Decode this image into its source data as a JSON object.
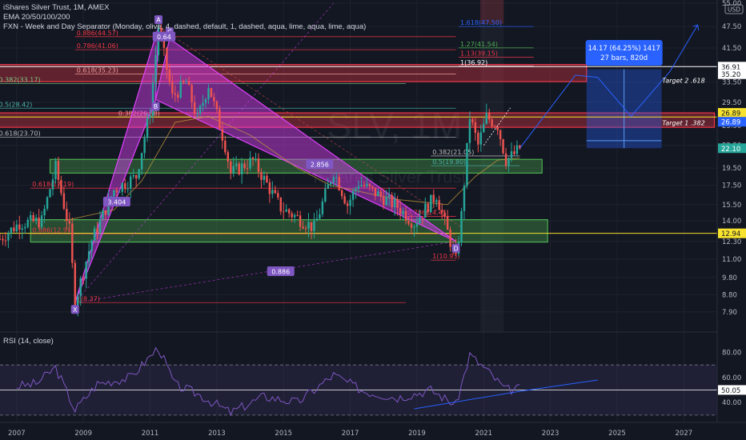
{
  "legend": {
    "title": "iShares Silver Trust, 1M, AMEX",
    "ema": "EMA 20/50/100/200",
    "fxn": "FXN - Week and Day Separator (Monday, olive, 4, dashed, default, 1, dashed, aqua, lime, aqua, lime, aqua)",
    "rsi": "RSI (14, close)"
  },
  "currency": "USD",
  "watermark": {
    "symbol": "SLV, 1M",
    "name": "iShares Silver Trust"
  },
  "colors": {
    "background": "#131722",
    "up": "#26a69a",
    "down": "#ef5350",
    "pattern": "#e040fb",
    "red_zone": "#f23645",
    "green_zone": "#4caf50",
    "target_box": "#2962ff",
    "yellow_line": "#f7e32f",
    "rsi_line": "#7e57c2"
  },
  "chart_data": {
    "type": "candlestick",
    "x_range": [
      "2006-06",
      "2027-12"
    ],
    "x_ticks": [
      "2007",
      "2009",
      "2011",
      "2013",
      "2015",
      "2017",
      "2019",
      "2021",
      "2023",
      "2025",
      "2027"
    ],
    "y_ticks": [
      "7.90",
      "8.80",
      "9.80",
      "11.00",
      "12.30",
      "14.00",
      "15.50",
      "17.50",
      "19.50",
      "22.50",
      "25.50",
      "29.50",
      "33.50",
      "41.50",
      "47.50",
      "55.00"
    ],
    "y_range": [
      7.1,
      55
    ],
    "y_scale": "log",
    "price_path": [
      [
        "2006-07",
        12.5
      ],
      [
        "2007-02",
        13.8
      ],
      [
        "2007-10",
        14.0
      ],
      [
        "2008-03",
        19.6
      ],
      [
        "2008-08",
        13.2
      ],
      [
        "2008-10",
        8.37
      ],
      [
        "2009-04",
        12.4
      ],
      [
        "2009-12",
        17.0
      ],
      [
        "2010-08",
        18.5
      ],
      [
        "2011-01",
        28.0
      ],
      [
        "2011-04",
        47.5
      ],
      [
        "2011-09",
        30.5
      ],
      [
        "2012-02",
        33.5
      ],
      [
        "2012-06",
        26.5
      ],
      [
        "2012-10",
        33.0
      ],
      [
        "2013-04",
        22.5
      ],
      [
        "2013-06",
        18.9
      ],
      [
        "2014-02",
        20.5
      ],
      [
        "2014-12",
        15.2
      ],
      [
        "2015-12",
        13.4
      ],
      [
        "2016-07",
        19.2
      ],
      [
        "2016-12",
        15.5
      ],
      [
        "2017-04",
        17.8
      ],
      [
        "2018-06",
        15.3
      ],
      [
        "2018-12",
        13.8
      ],
      [
        "2019-08",
        16.5
      ],
      [
        "2020-03",
        10.93
      ],
      [
        "2020-05",
        14.5
      ],
      [
        "2020-08",
        27.0
      ],
      [
        "2020-11",
        22.5
      ],
      [
        "2021-02",
        26.9
      ],
      [
        "2021-06",
        25.5
      ],
      [
        "2021-09",
        20.5
      ],
      [
        "2021-12",
        21.3
      ],
      [
        "2022-02",
        22.1
      ]
    ],
    "last_price": 22.1,
    "price_labels": [
      {
        "label": "36.91",
        "value": 36.91,
        "color": "#f23645",
        "text_color": "#131722",
        "bg": "#ffffff"
      },
      {
        "label": "35.20",
        "value": 35.2,
        "color": "#f23645",
        "text_color": "#131722",
        "bg": "#ffffff"
      },
      {
        "label": "26.89",
        "value": 27.6,
        "color": "#f7e32f",
        "text_color": "#131722",
        "bg": "#f7e32f"
      },
      {
        "label": "26.89",
        "value": 26.1,
        "color": "#2962ff",
        "text_color": "#ffffff",
        "bg": "#2962ff"
      },
      {
        "label": "22.10",
        "value": 22.1,
        "color": "#26a69a",
        "text_color": "#ffffff",
        "bg": "#26a69a"
      },
      {
        "label": "12.94",
        "value": 12.94,
        "color": "#f7e32f",
        "text_color": "#131722",
        "bg": "#f7e32f"
      }
    ],
    "horizontal_lines": [
      {
        "value": 26.89,
        "color": "#f7e32f"
      },
      {
        "value": 12.94,
        "color": "#f7e32f"
      },
      {
        "value": 36.91,
        "color": "#ffffff"
      }
    ],
    "zones": [
      {
        "type": "red",
        "from": "2006-06",
        "to": "2024-02",
        "low": 33.6,
        "high": 37.4
      },
      {
        "type": "red",
        "from": "2006-06",
        "to": "2027-12",
        "low": 25.2,
        "high": 27.6
      },
      {
        "type": "green",
        "from": "2008-01",
        "to": "2022-10",
        "low": 18.9,
        "high": 20.6
      },
      {
        "type": "green",
        "from": "2007-06",
        "to": "2022-12",
        "low": 12.25,
        "high": 14.1
      }
    ],
    "fib_levels": [
      {
        "label": "1.618(47.50)",
        "value": 47.5,
        "color": "#2962ff",
        "from": "2020-04",
        "to": "2022-07"
      },
      {
        "label": "1.27(41.54)",
        "value": 41.54,
        "color": "#4caf50",
        "from": "2020-04",
        "to": "2022-07"
      },
      {
        "label": "1.13(39.15)",
        "value": 39.15,
        "color": "#f23645",
        "from": "2020-04",
        "to": "2022-07"
      },
      {
        "label": "1(36.92)",
        "value": 37.0,
        "color": "#ffffff",
        "from": "2020-04",
        "to": "2022-07"
      },
      {
        "label": "0.886(44.57)",
        "value": 44.57,
        "color": "#f23645",
        "from": "2008-10",
        "to": "2020-03"
      },
      {
        "label": "0.786(41.06)",
        "value": 41.06,
        "color": "#f23645",
        "from": "2008-10",
        "to": "2020-03"
      },
      {
        "label": "0.618(35.23)",
        "value": 35.23,
        "color": "#ef9a9a",
        "from": "2008-10",
        "to": "2020-03"
      },
      {
        "label": "0.382(33.17)",
        "value": 33.17,
        "color": "#81c784",
        "from": "2006-06",
        "to": "2018-09"
      },
      {
        "label": "0.5(28.42)",
        "value": 28.42,
        "color": "#4db6ac",
        "from": "2006-06",
        "to": "2020-03"
      },
      {
        "label": "0.382(26.88)",
        "value": 26.88,
        "color": "#ef9a9a",
        "from": "2010-01",
        "to": "2020-03"
      },
      {
        "label": "0.618(23.70)",
        "value": 23.7,
        "color": "#bdbdbd",
        "from": "2006-06",
        "to": "2020-03"
      },
      {
        "label": "0.382(21.05)",
        "value": 21.05,
        "color": "#bdbdbd",
        "from": "2019-06",
        "to": "2022-02"
      },
      {
        "label": "0.5(19.80)",
        "value": 19.8,
        "color": "#4db6ac",
        "from": "2019-06",
        "to": "2022-02"
      },
      {
        "label": "0.618(17.19)",
        "value": 17.19,
        "color": "#f23645",
        "from": "2007-06",
        "to": "2020-03"
      },
      {
        "label": "0.786(14.4)",
        "value": 14.4,
        "color": "#f23645",
        "from": "2018-09",
        "to": "2020-03"
      },
      {
        "label": "0.886(12.9)",
        "value": 12.9,
        "color": "#f23645",
        "from": "2007-06",
        "to": "2020-03"
      },
      {
        "label": "1(10.93)",
        "value": 10.93,
        "color": "#f23645",
        "from": "2019-06",
        "to": "2020-03"
      },
      {
        "label": "1(8.37)",
        "value": 8.37,
        "color": "#f23645",
        "from": "2008-10",
        "to": "2018-09"
      }
    ],
    "xabcd_points": [
      {
        "label": "X",
        "date": "2008-10",
        "value": 8.37
      },
      {
        "label": "A",
        "date": "2011-04",
        "value": 47.5
      },
      {
        "label": "B",
        "date": "2011-03",
        "value": 30.0
      },
      {
        "label": "C",
        "date": "2011-08",
        "value": 44.0
      },
      {
        "label": "D",
        "date": "2020-03",
        "value": 12.3
      }
    ],
    "pattern_ratios": [
      {
        "label": "0.64",
        "date": "2011-06",
        "value": 44.6
      },
      {
        "label": "3.404",
        "date": "2010-01",
        "value": 15.8
      },
      {
        "label": "2.856",
        "date": "2016-02",
        "value": 20.0
      },
      {
        "label": "0.886",
        "date": "2014-12",
        "value": 10.2
      }
    ],
    "targets": [
      {
        "label": "Target 2 .618",
        "value": 33.0
      },
      {
        "label": "Target 1 .382",
        "value": 25.3
      }
    ],
    "measure": {
      "line1": "14.17 (64.25%) 1417",
      "line2": "27 bars, 820d",
      "from": "2024-02",
      "to": "2026-05",
      "low": 22.1,
      "high": 36.3
    },
    "projection_path": [
      [
        "2022-02",
        22.1
      ],
      [
        "2023-10",
        35.0
      ],
      [
        "2024-06",
        34.5
      ],
      [
        "2025-06",
        27.0
      ],
      [
        "2026-08",
        35.8
      ],
      [
        "2027-06",
        48.0
      ]
    ],
    "rsi": {
      "title": "RSI (14, close)",
      "y_ticks": [
        "40.00",
        "60.00",
        "80.00"
      ],
      "current": "50.05",
      "upper": 70,
      "lower": 30,
      "mid": 50,
      "y_range": [
        28,
        88
      ],
      "values_path": [
        [
          "2007-01",
          53
        ],
        [
          "2007-08",
          55
        ],
        [
          "2008-03",
          68
        ],
        [
          "2008-10",
          34
        ],
        [
          "2009-06",
          55
        ],
        [
          "2010-06",
          60
        ],
        [
          "2011-04",
          84
        ],
        [
          "2011-10",
          54
        ],
        [
          "2012-06",
          47
        ],
        [
          "2013-06",
          32
        ],
        [
          "2014-06",
          45
        ],
        [
          "2015-06",
          40
        ],
        [
          "2016-07",
          62
        ],
        [
          "2017-06",
          49
        ],
        [
          "2018-06",
          44
        ],
        [
          "2019-06",
          50
        ],
        [
          "2020-03",
          38
        ],
        [
          "2020-08",
          78
        ],
        [
          "2021-02",
          66
        ],
        [
          "2021-09",
          50
        ],
        [
          "2022-02",
          51
        ]
      ],
      "trendlines": [
        {
          "from": [
            "2018-12",
            35
          ],
          "to": [
            "2022-02",
            49
          ]
        },
        {
          "from": [
            "2022-02",
            49
          ],
          "to": [
            "2024-06",
            58
          ]
        }
      ]
    }
  }
}
